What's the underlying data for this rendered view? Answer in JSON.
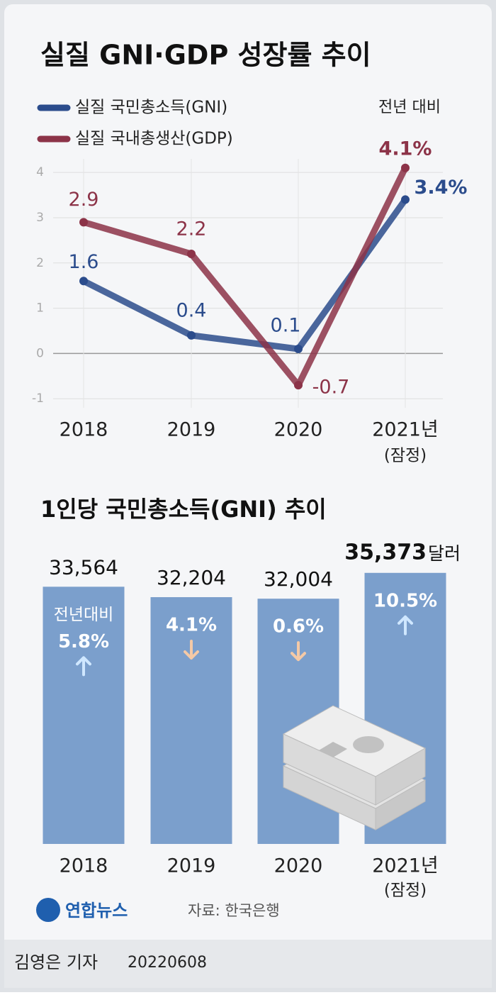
{
  "chart_data": [
    {
      "type": "line",
      "title": "실질 GNI·GDP 성장률 추이",
      "annotation": "전년 대비",
      "categories": [
        "2018",
        "2019",
        "2020",
        "2021년"
      ],
      "category_notes": [
        null,
        null,
        null,
        "(잠정)"
      ],
      "series": [
        {
          "name": "실질 국민총소득(GNI)",
          "color": "#2b4c8c",
          "values": [
            1.6,
            0.4,
            0.1,
            3.4
          ],
          "value_labels": [
            "1.6",
            "0.4",
            "0.1",
            "3.4%"
          ]
        },
        {
          "name": "실질 국내총생산(GDP)",
          "color": "#8c3348",
          "values": [
            2.9,
            2.2,
            -0.7,
            4.1
          ],
          "value_labels": [
            "2.9",
            "2.2",
            "-0.7",
            "4.1%"
          ]
        }
      ],
      "ylim": [
        -1.2,
        4.3
      ],
      "yticks": [
        -1,
        0,
        1,
        2,
        3,
        4
      ],
      "grid": true,
      "legend": "top-left"
    },
    {
      "type": "bar",
      "title": "1인당 국민총소득(GNI) 추이",
      "color": "#7b9fcc",
      "categories": [
        "2018",
        "2019",
        "2020",
        "2021년"
      ],
      "category_notes": [
        null,
        null,
        null,
        "(잠정)"
      ],
      "values": [
        33564,
        32204,
        32004,
        35373
      ],
      "value_labels": [
        "33,564",
        "32,204",
        "32,004",
        "35,373"
      ],
      "value_unit": "달러",
      "change_annotation": "전년대비",
      "change_labels": [
        "5.8%",
        "4.1%",
        "0.6%",
        "10.5%"
      ],
      "change_directions": [
        "up",
        "down",
        "down",
        "up"
      ],
      "ylim": [
        0,
        36000
      ]
    }
  ],
  "logo": "연합뉴스",
  "source": "자료: 한국은행",
  "reporter": "김영은 기자",
  "date": "20220608"
}
